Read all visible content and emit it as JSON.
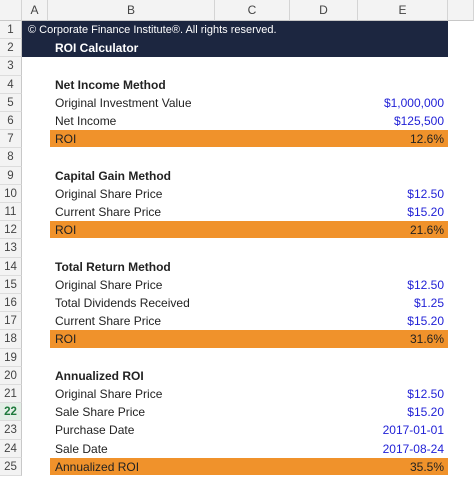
{
  "columns": [
    "A",
    "B",
    "C",
    "D",
    "E"
  ],
  "row_numbers": [
    1,
    2,
    3,
    4,
    5,
    6,
    7,
    8,
    9,
    10,
    11,
    12,
    13,
    14,
    15,
    16,
    17,
    18,
    19,
    20,
    21,
    22,
    23,
    24,
    25
  ],
  "banner": {
    "copyright": "© Corporate Finance Institute®. All rights reserved.",
    "title": "ROI Calculator"
  },
  "sections": [
    {
      "heading": "Net Income Method",
      "items": [
        {
          "label": "Original Investment Value",
          "value": "$1,000,000"
        },
        {
          "label": "Net Income",
          "value": "$125,500"
        }
      ],
      "result": {
        "label": "ROI",
        "value": "12.6%"
      }
    },
    {
      "heading": "Capital Gain Method",
      "items": [
        {
          "label": "Original Share Price",
          "value": "$12.50"
        },
        {
          "label": "Current Share Price",
          "value": "$15.20"
        }
      ],
      "result": {
        "label": "ROI",
        "value": "21.6%"
      }
    },
    {
      "heading": "Total Return Method",
      "items": [
        {
          "label": "Original Share Price",
          "value": "$12.50"
        },
        {
          "label": "Total Dividends Received",
          "value": "$1.25"
        },
        {
          "label": "Current Share Price",
          "value": "$15.20"
        }
      ],
      "result": {
        "label": "ROI",
        "value": "31.6%"
      }
    },
    {
      "heading": "Annualized ROI",
      "items": [
        {
          "label": "Original Share Price",
          "value": "$12.50"
        },
        {
          "label": "Sale Share Price",
          "value": "$15.20"
        },
        {
          "label": "Purchase Date",
          "value": "2017-01-01"
        },
        {
          "label": "Sale Date",
          "value": "2017-08-24"
        }
      ],
      "result": {
        "label": "Annualized ROI",
        "value": "35.5%"
      }
    }
  ]
}
